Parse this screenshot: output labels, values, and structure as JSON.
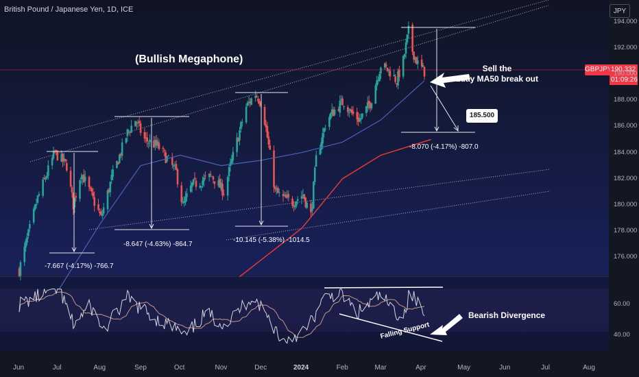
{
  "header": {
    "title": "British Pound / Japanese Yen, 1D, ICE",
    "currency_button": "JPY"
  },
  "price_tag": {
    "symbol": "GBPJPY",
    "price": "190.332",
    "countdown": "01:09:26"
  },
  "annotations": {
    "pattern": "(Bullish Megaphone)",
    "sell_line1": "Sell the",
    "sell_line2": "1day MA50 break out",
    "target": "185.500",
    "divergence": "Bearish Divergence",
    "falling_support": "Falling Support"
  },
  "measurements": [
    "-7.667 (-4.17%) -766.7",
    "-8.647 (-4.63%) -864.7",
    "-10.145 (-5.38%) -1014.5",
    "-8.070 (-4.17%) -807.0"
  ],
  "colors": {
    "bull": "#26a69a",
    "bear": "#ef5350",
    "ma50": "#4a62b8",
    "ma200": "#e53935",
    "rsi": "#d6d8de",
    "rsi_ma": "#c49a8a",
    "accent": "#f23645"
  },
  "chart_data": [
    {
      "type": "candlestick",
      "title": "British Pound / Japanese Yen, 1D, ICE",
      "x_ticks": [
        "Jun",
        "Jul",
        "Aug",
        "Sep",
        "Oct",
        "Nov",
        "Dec",
        "2024",
        "Feb",
        "Mar",
        "Apr",
        "May",
        "Jun",
        "Jul",
        "Aug"
      ],
      "y_ticks": [
        "176.000",
        "178.000",
        "180.000",
        "182.000",
        "184.000",
        "186.000",
        "188.000",
        "190.000",
        "192.000",
        "194.000"
      ],
      "ylim": [
        174.5,
        194.4
      ],
      "last_price": 190.332,
      "price_path": [
        [
          "Jun 1",
          175.0
        ],
        [
          "Jun 15",
          180.5
        ],
        [
          "Jun 28",
          184.0
        ],
        [
          "Jul 7",
          183.0
        ],
        [
          "Jul 12",
          180.0
        ],
        [
          "Jul 18",
          182.5
        ],
        [
          "Jul 28",
          180.2
        ],
        [
          "Aug 2",
          179.0
        ],
        [
          "Aug 10",
          182.0
        ],
        [
          "Aug 22",
          185.5
        ],
        [
          "Aug 28",
          186.5
        ],
        [
          "Sep 4",
          185.0
        ],
        [
          "Sep 14",
          184.5
        ],
        [
          "Sep 28",
          182.5
        ],
        [
          "Oct 3",
          179.9
        ],
        [
          "Oct 10",
          181.5
        ],
        [
          "Oct 25",
          182.2
        ],
        [
          "Nov 3",
          181.0
        ],
        [
          "Nov 12",
          184.5
        ],
        [
          "Nov 20",
          187.5
        ],
        [
          "Nov 27",
          188.5
        ],
        [
          "Dec 2",
          187.8
        ],
        [
          "Dec 7",
          184.5
        ],
        [
          "Dec 12",
          181.0
        ],
        [
          "Dec 18",
          180.5
        ],
        [
          "Dec 25",
          180.2
        ],
        [
          "Jan 2",
          180.8
        ],
        [
          "Jan 8",
          179.2
        ],
        [
          "Jan 12",
          183.5
        ],
        [
          "Jan 20",
          186.5
        ],
        [
          "Jan 28",
          187.5
        ],
        [
          "Feb 2",
          187.9
        ],
        [
          "Feb 8",
          187.0
        ],
        [
          "Feb 14",
          186.5
        ],
        [
          "Feb 22",
          187.8
        ],
        [
          "Mar 1",
          190.7
        ],
        [
          "Mar 8",
          190.2
        ],
        [
          "Mar 13",
          189.5
        ],
        [
          "Mar 18",
          191.0
        ],
        [
          "Mar 22",
          193.3
        ],
        [
          "Mar 25",
          191.8
        ],
        [
          "Mar 29",
          190.8
        ],
        [
          "Apr 3",
          190.2
        ]
      ],
      "ma50": [
        [
          "Jul 1",
          173.5
        ],
        [
          "Aug 1",
          178.5
        ],
        [
          "Sep 1",
          183.0
        ],
        [
          "Oct 1",
          183.8
        ],
        [
          "Nov 1",
          183.0
        ],
        [
          "Dec 1",
          183.4
        ],
        [
          "Jan 1",
          184.0
        ],
        [
          "Feb 1",
          184.8
        ],
        [
          "Mar 1",
          186.5
        ],
        [
          "Apr 3",
          189.5
        ]
      ],
      "ma200": [
        [
          "Nov 15",
          174.5
        ],
        [
          "Jan 1",
          178.2
        ],
        [
          "Feb 1",
          182.0
        ],
        [
          "Mar 1",
          183.8
        ],
        [
          "Apr 8",
          185.0
        ]
      ],
      "target": 185.5
    },
    {
      "type": "line",
      "name": "RSI",
      "y_ticks": [
        "40.00",
        "60.00"
      ],
      "ylim": [
        30,
        70
      ],
      "rsi": [
        [
          "Jun 1",
          60
        ],
        [
          "Jun 20",
          67
        ],
        [
          "Jul 1",
          70
        ],
        [
          "Jul 12",
          47
        ],
        [
          "Jul 25",
          59
        ],
        [
          "Aug 4",
          43
        ],
        [
          "Aug 22",
          64
        ],
        [
          "Sep 10",
          52
        ],
        [
          "Sep 28",
          44
        ],
        [
          "Oct 5",
          39
        ],
        [
          "Oct 20",
          54
        ],
        [
          "Nov 5",
          47
        ],
        [
          "Nov 25",
          66
        ],
        [
          "Dec 10",
          47
        ],
        [
          "Dec 18",
          36
        ],
        [
          "Jan 5",
          44
        ],
        [
          "Jan 20",
          66
        ],
        [
          "Feb 1",
          66
        ],
        [
          "Feb 12",
          54
        ],
        [
          "Mar 1",
          66
        ],
        [
          "Mar 10",
          56
        ],
        [
          "Mar 18",
          52
        ],
        [
          "Mar 23",
          68
        ],
        [
          "Apr 3",
          54
        ]
      ]
    }
  ]
}
